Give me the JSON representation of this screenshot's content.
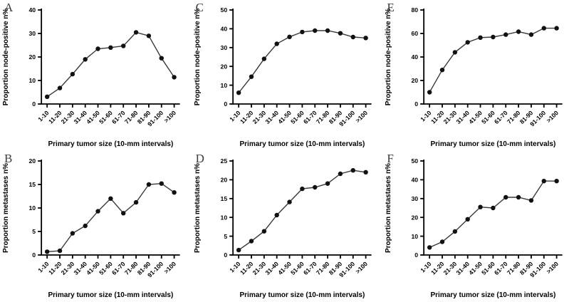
{
  "figure": {
    "background": "#ffffff",
    "axis_color": "#000000",
    "line_color": "#3a3a3a",
    "marker_color": "#111111"
  },
  "chart_data": [
    {
      "panel_label": "A",
      "type": "line",
      "ylabel": "Proportion node-positive n%",
      "xlabel": "Primary tumor size (10-mm intervals)",
      "ylim": [
        0,
        40
      ],
      "ytick_step": 10,
      "grid": false,
      "legend": null,
      "categories": [
        "1-10",
        "11-20",
        "21-30",
        "31-40",
        "41-50",
        "51-60",
        "61-70",
        "71-80",
        "81-90",
        "91-100",
        ">100"
      ],
      "values": [
        3.1,
        6.8,
        12.7,
        19.0,
        23.5,
        24.0,
        24.7,
        30.5,
        29.0,
        19.5,
        11.4
      ]
    },
    {
      "panel_label": "C",
      "type": "line",
      "ylabel": "Proportion node-positive n%",
      "xlabel": "Primary tumor size (10-mm intervals)",
      "ylim": [
        0,
        50
      ],
      "ytick_step": 10,
      "grid": false,
      "legend": null,
      "categories": [
        "1-10",
        "11-20",
        "21-30",
        "31-40",
        "41-50",
        "51-60",
        "61-70",
        "71-80",
        "81-90",
        "91-100",
        ">100"
      ],
      "values": [
        6.0,
        14.5,
        24.0,
        32.0,
        35.7,
        38.3,
        39.0,
        39.0,
        37.6,
        35.6,
        35.1
      ]
    },
    {
      "panel_label": "E",
      "type": "line",
      "ylabel": "Proportion node-positive n%",
      "xlabel": "Primary tumor size (10-mm intervals)",
      "ylim": [
        0,
        80
      ],
      "ytick_step": 20,
      "grid": false,
      "legend": null,
      "categories": [
        "1-10",
        "11-20",
        "21-30",
        "31-40",
        "41-50",
        "51-60",
        "61-70",
        "71-80",
        "81-90",
        "91-100",
        ">100"
      ],
      "values": [
        10.0,
        29.0,
        44.0,
        52.5,
        56.5,
        57.0,
        59.0,
        61.5,
        59.0,
        64.5,
        64.5
      ]
    },
    {
      "panel_label": "B",
      "type": "line",
      "ylabel": "Proportion metastases n%",
      "xlabel": "Primary tumor size (10-mm intervals)",
      "ylim": [
        0,
        20
      ],
      "ytick_step": 5,
      "grid": false,
      "legend": null,
      "categories": [
        "1-10",
        "11-20",
        "21-30",
        "31-40",
        "41-50",
        "51-60",
        "61-70",
        "71-80",
        "81-90",
        "91-100",
        ">100"
      ],
      "values": [
        0.7,
        0.9,
        4.6,
        6.2,
        9.3,
        12.0,
        8.9,
        11.2,
        15.0,
        15.2,
        13.3
      ]
    },
    {
      "panel_label": "D",
      "type": "line",
      "ylabel": "Proportion metastases n%",
      "xlabel": "Primary tumor size (10-mm intervals)",
      "ylim": [
        0,
        25
      ],
      "ytick_step": 5,
      "grid": false,
      "legend": null,
      "categories": [
        "1-10",
        "11-20",
        "21-30",
        "31-40",
        "41-50",
        "51-60",
        "61-70",
        "71-80",
        "81-90",
        "91-100",
        ">100"
      ],
      "values": [
        1.3,
        3.7,
        6.3,
        10.6,
        14.1,
        17.6,
        18.0,
        19.0,
        21.6,
        22.5,
        22.0
      ]
    },
    {
      "panel_label": "F",
      "type": "line",
      "ylabel": "Proportion metastases n%",
      "xlabel": "Primary tumor size (10-mm intervals)",
      "ylim": [
        0,
        50
      ],
      "ytick_step": 10,
      "grid": false,
      "legend": null,
      "categories": [
        "1-10",
        "11-20",
        "21-30",
        "31-40",
        "41-50",
        "51-60",
        "61-70",
        "71-80",
        "81-90",
        "91-100",
        ">100"
      ],
      "values": [
        4.0,
        7.0,
        12.5,
        19.0,
        25.5,
        25.0,
        30.7,
        30.7,
        29.0,
        39.3,
        39.3
      ]
    }
  ]
}
